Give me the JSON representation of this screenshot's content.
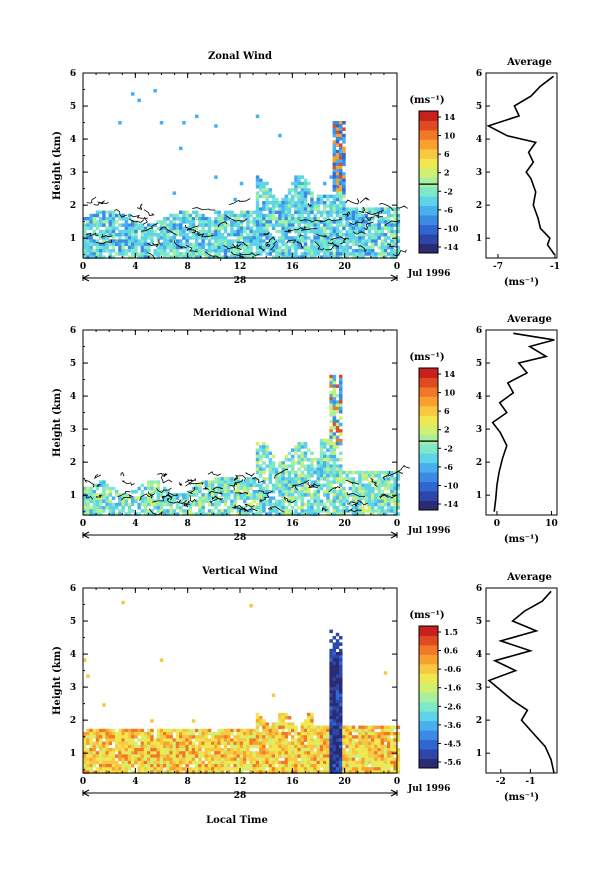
{
  "panels": [
    {
      "title": "Zonal Wind",
      "ylabel": "Height (km)",
      "yticks": [
        "1",
        "2",
        "3",
        "4",
        "5",
        "6"
      ],
      "xticks": [
        "0",
        "4",
        "8",
        "12",
        "16",
        "20",
        "0"
      ],
      "day_label": "28",
      "date_label": "Jul 1996",
      "colorbar_unit": "(ms⁻¹)",
      "colorbar_ticks": [
        "14",
        "10",
        "6",
        "2",
        "-2",
        "-6",
        "-10",
        "-14"
      ],
      "avg_title": "Average",
      "avg_xticks": [
        "-7",
        "-1"
      ],
      "avg_xlabel": "(ms⁻¹)"
    },
    {
      "title": "Meridional Wind",
      "ylabel": "Height (km)",
      "yticks": [
        "1",
        "2",
        "3",
        "4",
        "5",
        "6"
      ],
      "xticks": [
        "0",
        "4",
        "8",
        "12",
        "16",
        "20",
        "0"
      ],
      "day_label": "28",
      "date_label": "Jul 1996",
      "colorbar_unit": "(ms⁻¹)",
      "colorbar_ticks": [
        "14",
        "10",
        "6",
        "2",
        "-2",
        "-6",
        "-10",
        "-14"
      ],
      "avg_title": "Average",
      "avg_xticks": [
        "0",
        "10"
      ],
      "avg_xlabel": "(ms⁻¹)"
    },
    {
      "title": "Vertical Wind",
      "ylabel": "Height (km)",
      "yticks": [
        "1",
        "2",
        "3",
        "4",
        "5",
        "6"
      ],
      "xticks": [
        "0",
        "4",
        "8",
        "12",
        "16",
        "20",
        "0"
      ],
      "day_label": "28",
      "date_label": "Jul 1996",
      "colorbar_unit": "(ms⁻¹)",
      "colorbar_ticks": [
        "1.5",
        "0.6",
        "-0.6",
        "-1.6",
        "-2.6",
        "-3.6",
        "-4.5",
        "-5.6"
      ],
      "avg_title": "Average",
      "avg_xticks": [
        "-2",
        "-1"
      ],
      "avg_xlabel": "(ms⁻¹)"
    }
  ],
  "xlabel": "Local Time",
  "colors": [
    "#2a2b72",
    "#2c47a8",
    "#2f66d0",
    "#3a8ae6",
    "#48b0ee",
    "#5fd3e8",
    "#7fe8c8",
    "#a8f0a0",
    "#d2f070",
    "#f0e850",
    "#f8c840",
    "#f8a030",
    "#f07828",
    "#e04a22",
    "#c8201c"
  ],
  "chart_data": [
    {
      "type": "heatmap",
      "title": "Zonal Wind",
      "xlabel": "Local Time",
      "ylabel": "Height (km)",
      "xlim": [
        0,
        24
      ],
      "ylim": [
        0.4,
        6
      ],
      "clim": [
        -14,
        14
      ],
      "colorbar_ticks": [
        14,
        10,
        6,
        2,
        -2,
        -6,
        -10,
        -14
      ],
      "average_profile": {
        "title": "Average",
        "xlim": [
          -7,
          -1
        ],
        "height": [
          0.5,
          0.8,
          1.0,
          1.3,
          1.6,
          2.0,
          2.4,
          2.8,
          3.0,
          3.3,
          3.6,
          3.9,
          4.1,
          4.4,
          4.7,
          5.0,
          5.3,
          5.6,
          5.9
        ],
        "value": [
          -1.2,
          -1.8,
          -1.6,
          -2.4,
          -2.6,
          -3.0,
          -2.8,
          -3.2,
          -3.6,
          -3.0,
          -3.4,
          -2.8,
          -5.2,
          -6.8,
          -4.2,
          -4.6,
          -3.2,
          -2.4,
          -1.3
        ]
      }
    },
    {
      "type": "heatmap",
      "title": "Meridional Wind",
      "xlabel": "Local Time",
      "ylabel": "Height (km)",
      "xlim": [
        0,
        24
      ],
      "ylim": [
        0.4,
        6
      ],
      "clim": [
        -14,
        14
      ],
      "colorbar_ticks": [
        14,
        10,
        6,
        2,
        -2,
        -6,
        -10,
        -14
      ],
      "average_profile": {
        "title": "Average",
        "xlim": [
          -2,
          11
        ],
        "height": [
          0.5,
          0.9,
          1.3,
          1.7,
          2.1,
          2.5,
          2.9,
          3.2,
          3.5,
          3.8,
          4.1,
          4.4,
          4.7,
          5.0,
          5.2,
          5.5,
          5.7,
          5.9
        ],
        "value": [
          -0.5,
          -0.2,
          0.0,
          0.4,
          1.0,
          1.8,
          0.6,
          -0.8,
          1.8,
          0.5,
          3.0,
          2.0,
          5.5,
          4.0,
          9.0,
          6.0,
          10.5,
          3.0
        ]
      }
    },
    {
      "type": "heatmap",
      "title": "Vertical Wind",
      "xlabel": "Local Time",
      "ylabel": "Height (km)",
      "xlim": [
        0,
        24
      ],
      "ylim": [
        0.4,
        6
      ],
      "clim": [
        -5.6,
        1.5
      ],
      "colorbar_ticks": [
        1.5,
        0.6,
        -0.6,
        -1.6,
        -2.6,
        -3.6,
        -4.5,
        -5.6
      ],
      "average_profile": {
        "title": "Average",
        "xlim": [
          -2.5,
          -0.1
        ],
        "height": [
          0.4,
          0.8,
          1.2,
          1.6,
          2.0,
          2.3,
          2.6,
          2.9,
          3.2,
          3.5,
          3.8,
          4.1,
          4.4,
          4.7,
          5.0,
          5.3,
          5.6,
          5.9
        ],
        "value": [
          -0.2,
          -0.3,
          -0.5,
          -0.9,
          -1.3,
          -1.1,
          -1.6,
          -2.0,
          -2.4,
          -1.5,
          -2.2,
          -1.0,
          -2.0,
          -0.8,
          -1.6,
          -1.2,
          -0.6,
          -0.3
        ]
      }
    }
  ]
}
